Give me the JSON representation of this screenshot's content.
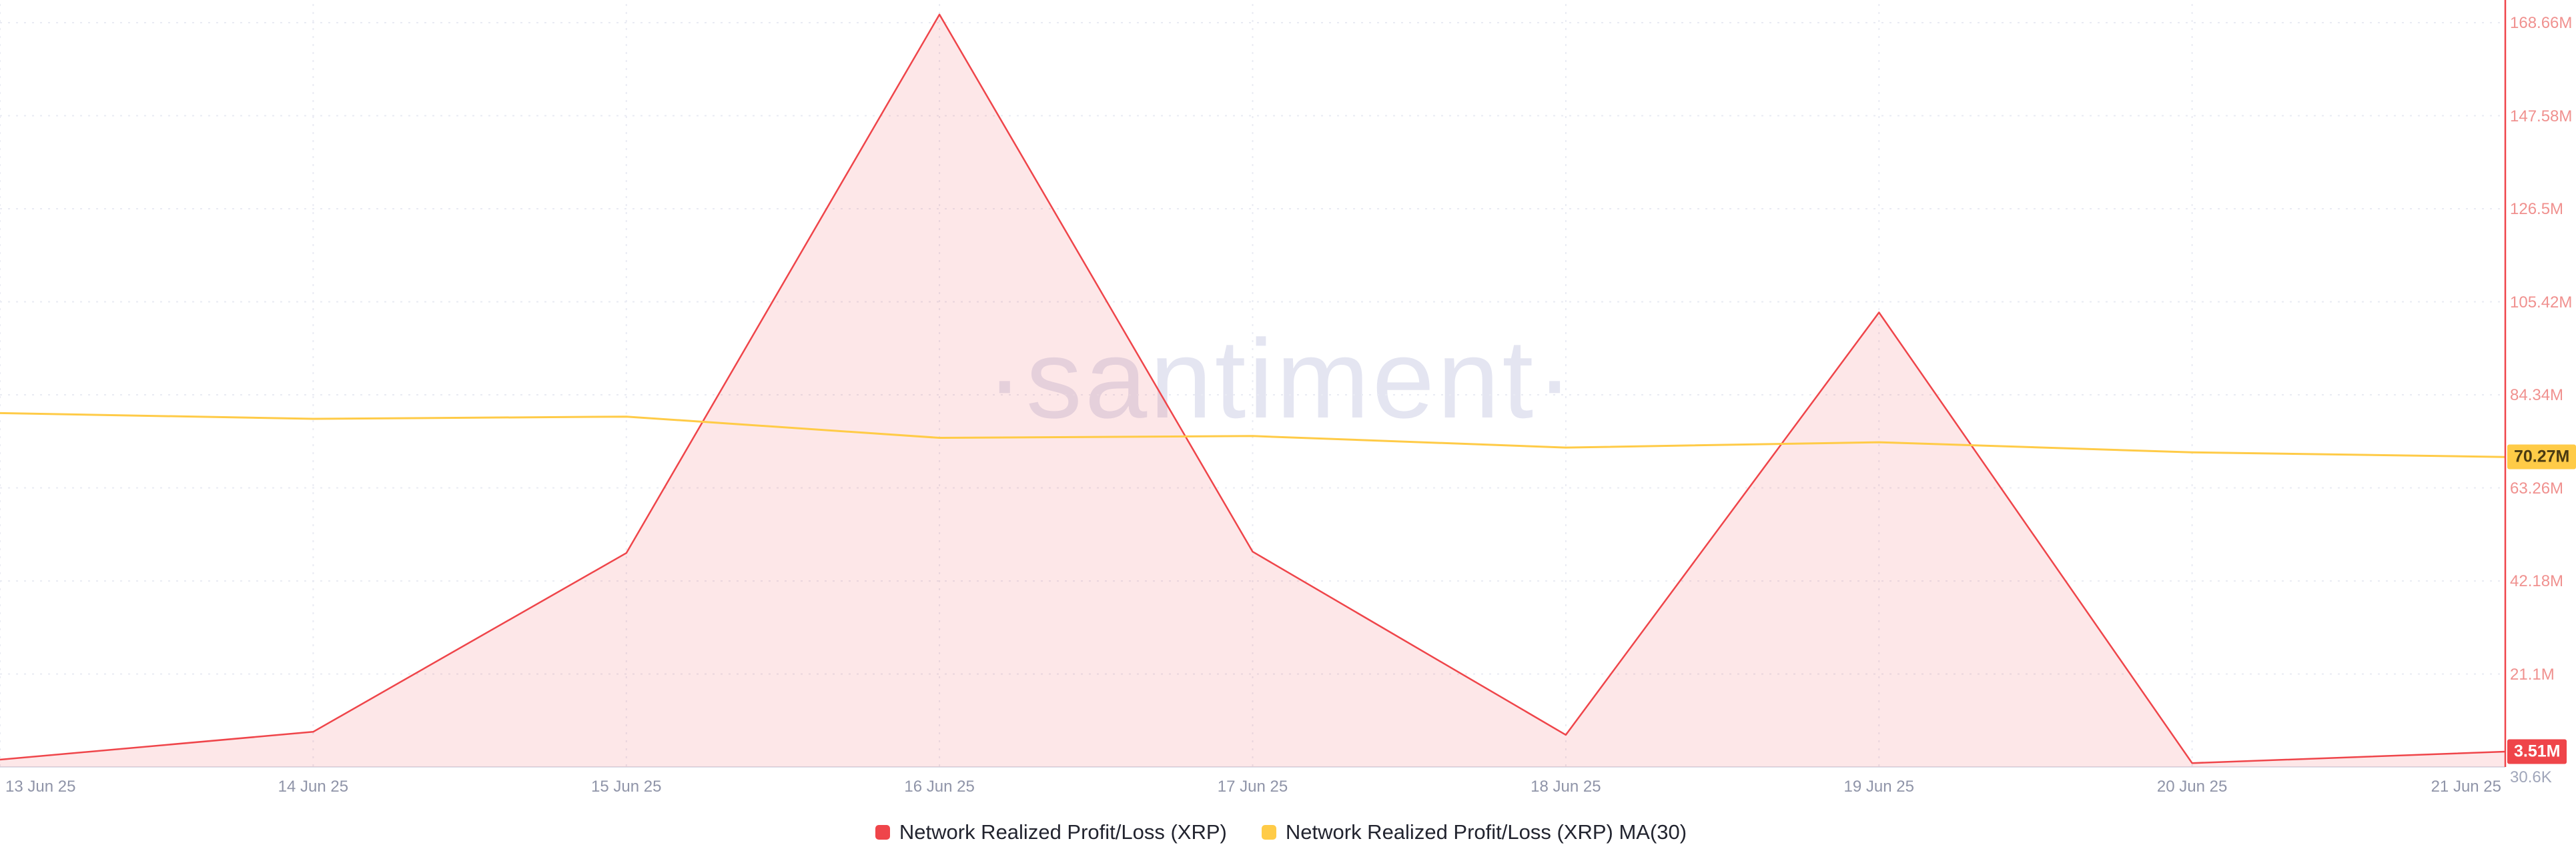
{
  "watermark": "·santiment·",
  "colors": {
    "series_red": "#EF454A",
    "series_red_fill": "rgba(239,69,74,0.13)",
    "series_yellow": "#FFCB47",
    "y_tick_text": "#F0918F",
    "x_tick_text": "#8F94A8",
    "grid": "#E9EBF3",
    "watermark_text": "#E4E5F1",
    "background": "#FFFFFF"
  },
  "badges": {
    "ma_last": {
      "label": "70.27M",
      "value_M": 70.27,
      "color": "#FFCB47"
    },
    "series_last": {
      "label": "3.51M",
      "value_M": 3.51,
      "color": "#EF454A"
    }
  },
  "chart_data": {
    "type": "area",
    "title": "",
    "xlabel": "",
    "ylabel": "",
    "x": [
      "13 Jun 25",
      "14 Jun 25",
      "15 Jun 25",
      "16 Jun 25",
      "17 Jun 25",
      "18 Jun 25",
      "19 Jun 25",
      "20 Jun 25",
      "21 Jun 25"
    ],
    "series": [
      {
        "name": "Network Realized Profit/Loss (XRP)",
        "style": "area-line",
        "color": "#EF454A",
        "values_M": [
          1.7,
          8.0,
          48.5,
          170.5,
          48.8,
          7.3,
          103.0,
          0.9,
          3.51
        ]
      },
      {
        "name": "Network Realized Profit/Loss (XRP) MA(30)",
        "style": "line",
        "color": "#FFCB47",
        "values_M": [
          80.2,
          78.9,
          79.4,
          74.6,
          75.0,
          72.4,
          73.6,
          71.3,
          70.27
        ]
      }
    ],
    "y_ticks": [
      {
        "label": "168.66M",
        "value_M": 168.66
      },
      {
        "label": "147.58M",
        "value_M": 147.58
      },
      {
        "label": "126.5M",
        "value_M": 126.5
      },
      {
        "label": "105.42M",
        "value_M": 105.42
      },
      {
        "label": "84.34M",
        "value_M": 84.34
      },
      {
        "label": "63.26M",
        "value_M": 63.26
      },
      {
        "label": "42.18M",
        "value_M": 42.18
      },
      {
        "label": "21.1M",
        "value_M": 21.1
      },
      {
        "label": "30.6K",
        "value_M": 0.0306
      }
    ],
    "ylim_M": [
      0.0306,
      168.66
    ],
    "grid": "dashed",
    "legend_position": "bottom"
  }
}
